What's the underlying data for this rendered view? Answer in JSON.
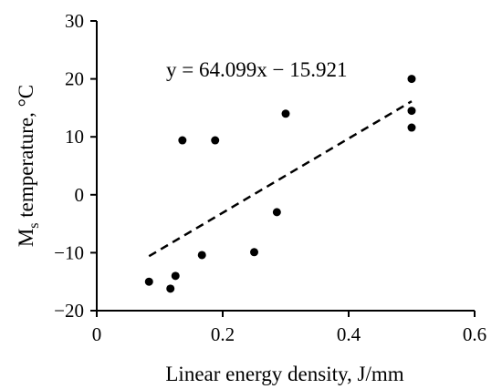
{
  "chart_data": {
    "type": "scatter",
    "title": "",
    "xlabel": "Linear energy density, J/mm",
    "ylabel_main": "M",
    "ylabel_sub": "s",
    "ylabel_rest": " temperature, °C",
    "xlim": [
      0,
      0.6
    ],
    "ylim": [
      -20,
      30
    ],
    "x_ticks": [
      0,
      0.2,
      0.4,
      0.6
    ],
    "x_tick_labels": [
      "0",
      "0.2",
      "0.4",
      "0.6"
    ],
    "y_ticks": [
      -20,
      -10,
      0,
      10,
      20,
      30
    ],
    "y_tick_labels": [
      "−20",
      "−10",
      "0",
      "10",
      "20",
      "30"
    ],
    "grid": false,
    "legend": false,
    "marker_color": "#000000",
    "points": [
      {
        "x": 0.083,
        "y": -15.0
      },
      {
        "x": 0.117,
        "y": -16.2
      },
      {
        "x": 0.125,
        "y": -14.0
      },
      {
        "x": 0.136,
        "y": 9.4
      },
      {
        "x": 0.167,
        "y": -10.4
      },
      {
        "x": 0.188,
        "y": 9.4
      },
      {
        "x": 0.25,
        "y": -9.9
      },
      {
        "x": 0.286,
        "y": -3.0
      },
      {
        "x": 0.3,
        "y": 14.0
      },
      {
        "x": 0.5,
        "y": 20.0
      },
      {
        "x": 0.5,
        "y": 14.5
      },
      {
        "x": 0.5,
        "y": 11.6
      }
    ],
    "trendline": {
      "style": "dashed",
      "slope": 64.099,
      "intercept": -15.921,
      "x_range": [
        0.083,
        0.5
      ],
      "equation": "y = 64.099x − 15.921"
    }
  }
}
